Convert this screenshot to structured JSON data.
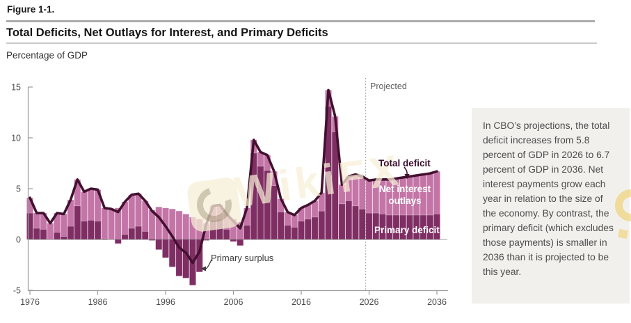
{
  "header": {
    "figure_label": "Figure 1-1.",
    "title": "Total Deficits, Net Outlays for Interest, and Primary Deficits",
    "subtitle": "Percentage of GDP"
  },
  "chart_labels": {
    "projected": "Projected",
    "total_deficit": "Total deficit",
    "net_interest_outlays": "Net interest outlays",
    "primary_deficit": "Primary deficit",
    "primary_surplus": "Primary surplus"
  },
  "callout": {
    "text": "In CBO’s projections, the total deficit increases from 5.8 percent of GDP in 2026 to 6.7 percent of GDP in 2036. Net interest payments grow each year in relation to the size of the economy. By contrast, the primary deficit (which excludes those payments) is smaller in 2036 than it is projected to be this year."
  },
  "watermark": {
    "text": "WikiFX"
  },
  "colors": {
    "primary_bar": "#7f2e64",
    "interest_bar": "#c475a7",
    "bar_seam": "rgba(255,255,255,0.28)",
    "total_line": "#43112f",
    "axis": "#9a9a9a",
    "zero_line": "rgba(95,95,95,0.6)",
    "tick_text": "#4b4b4b",
    "projected_line": "#8f8f8f"
  },
  "chart_data": {
    "type": "bar",
    "subtype": "stacked-bars-with-line",
    "title": "Total Deficits, Net Outlays for Interest, and Primary Deficits",
    "ylabel": "Percentage of GDP",
    "ylim": [
      -5,
      15
    ],
    "grid": "zero-line-only",
    "legend_position": "inline-annotations",
    "projection_divider_after_year": 2025,
    "y_ticks": [
      15,
      10,
      5,
      0,
      -5
    ],
    "x_ticks": [
      1976,
      1986,
      1996,
      2006,
      2016,
      2026,
      2036
    ],
    "years": [
      1976,
      1977,
      1978,
      1979,
      1980,
      1981,
      1982,
      1983,
      1984,
      1985,
      1986,
      1987,
      1988,
      1989,
      1990,
      1991,
      1992,
      1993,
      1994,
      1995,
      1996,
      1997,
      1998,
      1999,
      2000,
      2001,
      2002,
      2003,
      2004,
      2005,
      2006,
      2007,
      2008,
      2009,
      2010,
      2011,
      2012,
      2013,
      2014,
      2015,
      2016,
      2017,
      2018,
      2019,
      2020,
      2021,
      2022,
      2023,
      2024,
      2025,
      2026,
      2027,
      2028,
      2029,
      2030,
      2031,
      2032,
      2033,
      2034,
      2035,
      2036
    ],
    "series": [
      {
        "name": "Primary deficit",
        "role": "bar-lower",
        "values": [
          2.6,
          1.1,
          1.0,
          0.0,
          0.7,
          0.3,
          1.3,
          3.3,
          1.8,
          1.9,
          1.8,
          0.1,
          0.0,
          -0.4,
          0.5,
          1.1,
          1.3,
          0.8,
          -0.1,
          -1.0,
          -1.8,
          -2.7,
          -3.6,
          -3.8,
          -4.5,
          -3.2,
          -0.1,
          1.9,
          2.0,
          1.0,
          -0.2,
          -0.6,
          1.4,
          8.5,
          7.2,
          6.8,
          5.3,
          2.7,
          1.4,
          1.2,
          1.8,
          2.0,
          2.2,
          2.8,
          13.1,
          10.6,
          3.5,
          3.8,
          3.3,
          3.0,
          2.6,
          2.6,
          2.5,
          2.4,
          2.4,
          2.4,
          2.4,
          2.4,
          2.4,
          2.4,
          2.5
        ]
      },
      {
        "name": "Net interest outlays",
        "role": "bar-upper",
        "values": [
          1.5,
          1.5,
          1.6,
          1.6,
          1.9,
          2.2,
          2.6,
          2.6,
          2.9,
          3.1,
          3.1,
          3.0,
          3.0,
          3.1,
          3.2,
          3.3,
          3.2,
          3.0,
          2.9,
          3.2,
          3.1,
          3.0,
          2.8,
          2.5,
          2.2,
          2.0,
          1.6,
          1.4,
          1.4,
          1.5,
          2.0,
          1.7,
          1.7,
          1.3,
          1.4,
          1.5,
          1.4,
          1.3,
          1.3,
          1.2,
          1.3,
          1.4,
          1.6,
          1.8,
          1.6,
          1.5,
          1.9,
          2.4,
          3.1,
          3.2,
          3.2,
          3.3,
          3.4,
          3.5,
          3.6,
          3.7,
          3.8,
          3.9,
          4.0,
          4.1,
          4.2
        ]
      },
      {
        "name": "Total deficit",
        "role": "line",
        "values": [
          4.1,
          2.6,
          2.6,
          1.6,
          2.6,
          2.5,
          3.9,
          5.9,
          4.7,
          5.0,
          4.9,
          3.1,
          3.0,
          2.7,
          3.7,
          4.4,
          4.5,
          3.8,
          2.8,
          2.2,
          1.3,
          0.3,
          -0.8,
          -1.3,
          -2.3,
          -1.2,
          1.5,
          3.3,
          3.4,
          2.5,
          1.8,
          1.1,
          3.1,
          9.8,
          8.6,
          8.3,
          6.7,
          4.0,
          2.7,
          2.4,
          3.1,
          3.4,
          3.8,
          4.6,
          14.7,
          12.1,
          5.4,
          6.2,
          6.4,
          6.2,
          5.8,
          5.9,
          5.9,
          5.9,
          6.0,
          6.1,
          6.2,
          6.3,
          6.4,
          6.5,
          6.7
        ]
      }
    ]
  }
}
